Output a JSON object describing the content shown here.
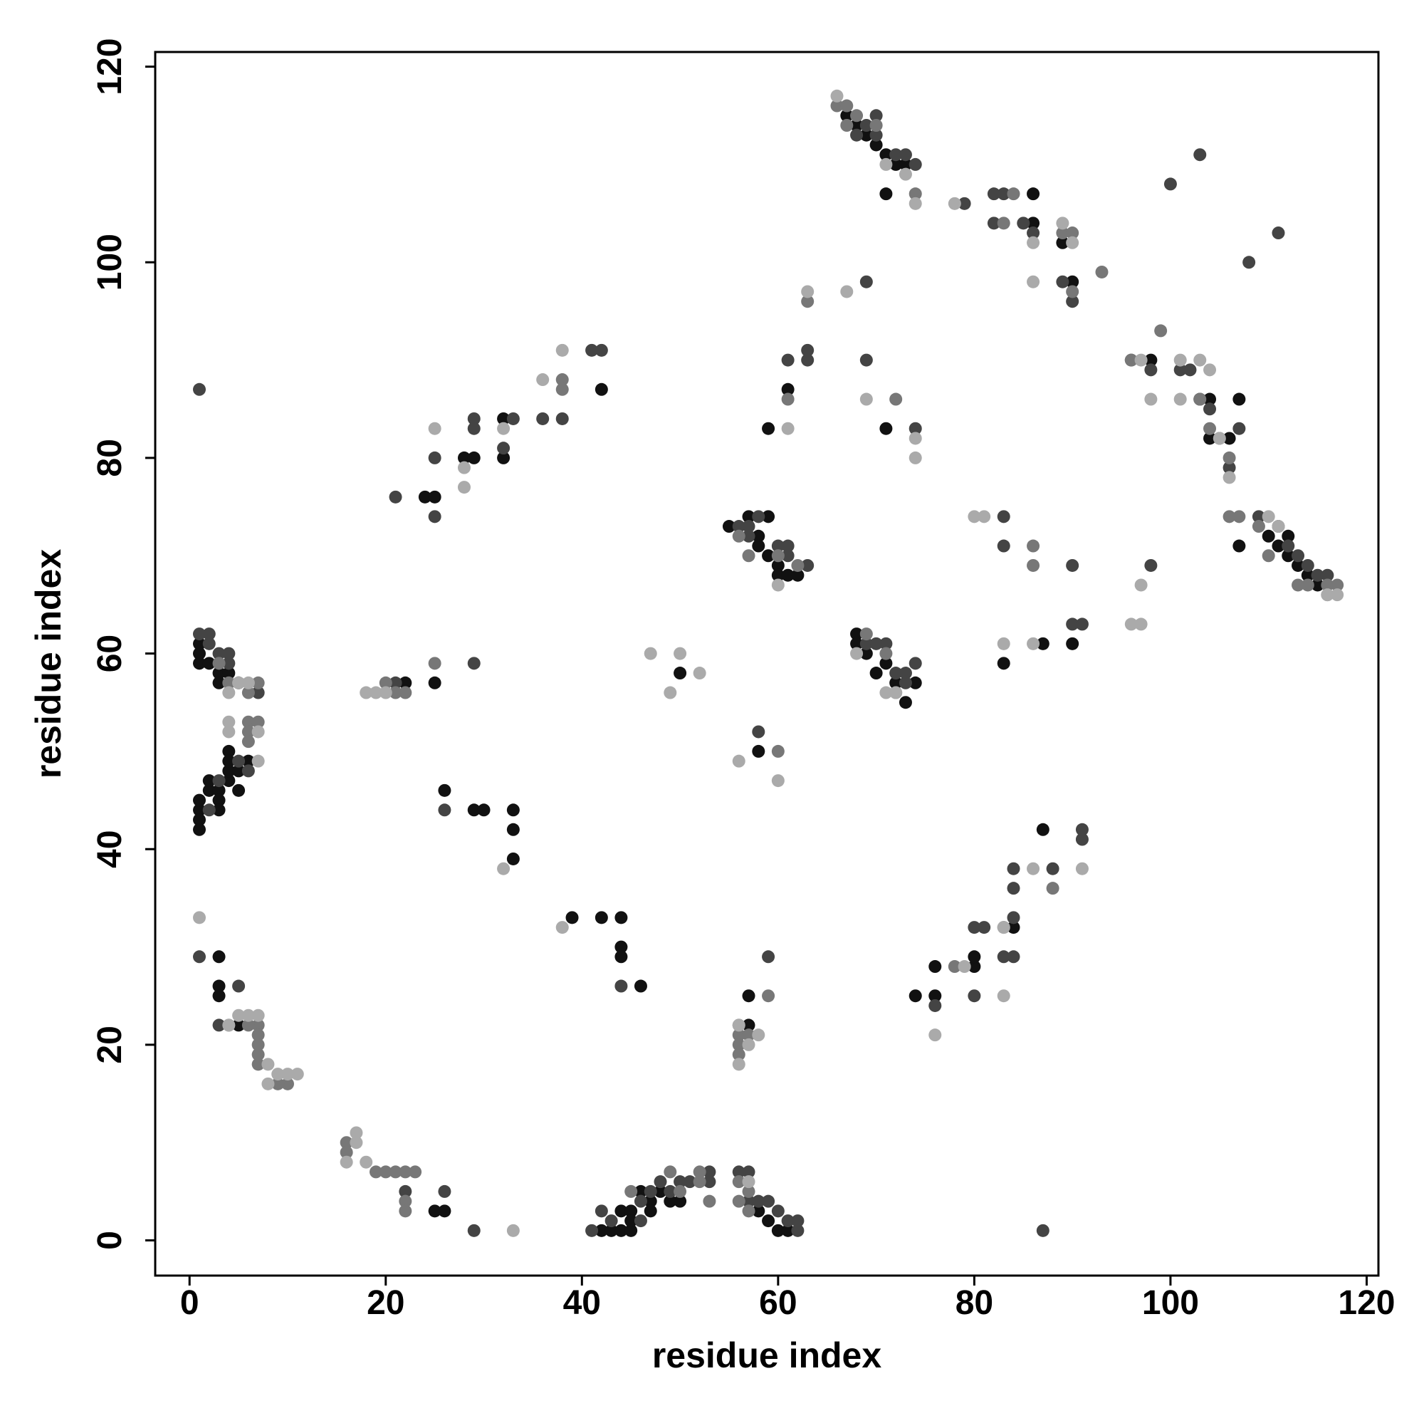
{
  "chart_data": {
    "type": "scatter",
    "xlabel": "residue index",
    "ylabel": "residue index",
    "xlim": [
      -3.5,
      121.2
    ],
    "ylim": [
      -3.6,
      121.5
    ],
    "xticks": [
      0,
      20,
      40,
      60,
      80,
      100,
      120
    ],
    "yticks": [
      0,
      20,
      40,
      60,
      80,
      100,
      120
    ],
    "series": [
      {
        "color": "#111111",
        "x": [
          1,
          1,
          2,
          1,
          3,
          4,
          3,
          1,
          1,
          1,
          1,
          2,
          2,
          3,
          3,
          3,
          4,
          4,
          4,
          4,
          5,
          5,
          6,
          22,
          25,
          24,
          25,
          28,
          29,
          32,
          32,
          42,
          26,
          29,
          30,
          33,
          33,
          33,
          39,
          42,
          44,
          44,
          44,
          46,
          3,
          3,
          3,
          5,
          25,
          26,
          42,
          43,
          44,
          45,
          44,
          45,
          45,
          46,
          47,
          47,
          48,
          49,
          50,
          50,
          57,
          55,
          58,
          58,
          59,
          60,
          60,
          61,
          62,
          59,
          57,
          57,
          58,
          58,
          59,
          60,
          61,
          61,
          59,
          68,
          68,
          69,
          70,
          71,
          72,
          73,
          74,
          71,
          71,
          67,
          68,
          69,
          70,
          71,
          72,
          73,
          86,
          86,
          89,
          90,
          87,
          83,
          90,
          87,
          84,
          80,
          80,
          76,
          76,
          74,
          98,
          103,
          104,
          104,
          107,
          107,
          106,
          110,
          111,
          112,
          113,
          114,
          115,
          112
        ],
        "y": [
          60,
          59,
          59,
          61,
          58,
          58,
          57,
          44,
          43,
          42,
          45,
          46,
          47,
          46,
          45,
          44,
          47,
          48,
          50,
          49,
          46,
          48,
          49,
          57,
          57,
          76,
          76,
          80,
          80,
          84,
          80,
          87,
          46,
          44,
          44,
          44,
          42,
          39,
          33,
          33,
          33,
          30,
          29,
          26,
          26,
          25,
          29,
          22,
          3,
          3,
          1,
          1,
          1,
          1,
          3,
          3,
          2,
          5,
          4,
          3,
          5,
          4,
          4,
          58,
          74,
          73,
          72,
          71,
          70,
          69,
          68,
          68,
          68,
          74,
          25,
          22,
          50,
          3,
          2,
          1,
          1,
          87,
          83,
          62,
          61,
          60,
          58,
          59,
          57,
          55,
          57,
          83,
          107,
          115,
          114,
          113,
          112,
          111,
          110,
          110,
          107,
          104,
          102,
          98,
          61,
          59,
          61,
          42,
          32,
          28,
          29,
          28,
          25,
          25,
          90,
          86,
          86,
          82,
          86,
          71,
          82,
          72,
          71,
          70,
          69,
          68,
          67,
          72
        ]
      },
      {
        "color": "#444444",
        "x": [
          2,
          1,
          2,
          3,
          4,
          4,
          5,
          7,
          2,
          3,
          5,
          6,
          25,
          25,
          29,
          29,
          32,
          33,
          36,
          38,
          41,
          42,
          21,
          21,
          26,
          26,
          22,
          29,
          44,
          3,
          41,
          43,
          46,
          47,
          48,
          49,
          46,
          50,
          51,
          53,
          53,
          56,
          57,
          57,
          58,
          59,
          60,
          61,
          62,
          62,
          56,
          57,
          57,
          58,
          60,
          61,
          61,
          63,
          61,
          63,
          63,
          69,
          69,
          74,
          69,
          70,
          71,
          72,
          73,
          73,
          74,
          68,
          69,
          70,
          70,
          72,
          73,
          74,
          79,
          82,
          83,
          82,
          85,
          86,
          89,
          90,
          83,
          83,
          90,
          90,
          91,
          80,
          81,
          83,
          84,
          84,
          84,
          84,
          80,
          76,
          88,
          91,
          91,
          96,
          98,
          101,
          102,
          104,
          105,
          106,
          107,
          98,
          100,
          103,
          108,
          111,
          109,
          111,
          112,
          113,
          114,
          115,
          116,
          1,
          1,
          5,
          59,
          58,
          87,
          29,
          42
        ],
        "y": [
          62,
          62,
          61,
          60,
          59,
          60,
          57,
          56,
          44,
          47,
          49,
          48,
          80,
          74,
          83,
          84,
          81,
          84,
          84,
          84,
          91,
          91,
          76,
          57,
          44,
          5,
          5,
          59,
          26,
          22,
          1,
          2,
          4,
          5,
          6,
          5,
          2,
          6,
          6,
          7,
          6,
          7,
          7,
          4,
          4,
          4,
          3,
          2,
          2,
          1,
          73,
          72,
          73,
          74,
          71,
          71,
          70,
          69,
          90,
          91,
          90,
          90,
          98,
          83,
          61,
          61,
          61,
          58,
          57,
          58,
          59,
          113,
          114,
          115,
          113,
          111,
          111,
          110,
          106,
          107,
          107,
          104,
          104,
          103,
          98,
          96,
          74,
          71,
          69,
          63,
          63,
          32,
          32,
          29,
          29,
          38,
          36,
          33,
          25,
          24,
          38,
          42,
          41,
          90,
          89,
          89,
          89,
          85,
          82,
          79,
          83,
          69,
          108,
          111,
          100,
          103,
          74,
          73,
          71,
          70,
          69,
          68,
          68,
          87,
          29,
          26,
          29,
          52,
          1,
          1,
          3
        ]
      },
      {
        "color": "#777777",
        "x": [
          3,
          4,
          6,
          7,
          6,
          6,
          6,
          7,
          5,
          20,
          21,
          22,
          25,
          38,
          38,
          22,
          22,
          22,
          21,
          20,
          19,
          16,
          16,
          23,
          45,
          49,
          50,
          52,
          53,
          52,
          56,
          57,
          56,
          57,
          56,
          56,
          57,
          56,
          56,
          7,
          7,
          7,
          7,
          7,
          6,
          4,
          10,
          9,
          59,
          60,
          56,
          62,
          61,
          63,
          67,
          66,
          67,
          68,
          70,
          74,
          84,
          83,
          89,
          90,
          93,
          96,
          106,
          107,
          104,
          103,
          106,
          110,
          113,
          114,
          116,
          117,
          116,
          88,
          83,
          78,
          86,
          86,
          90,
          72,
          57,
          60,
          72,
          69,
          71,
          99,
          109
        ],
        "y": [
          59,
          57,
          56,
          57,
          53,
          52,
          51,
          53,
          57,
          57,
          56,
          56,
          59,
          88,
          87,
          7,
          4,
          3,
          7,
          7,
          7,
          10,
          9,
          7,
          5,
          7,
          5,
          6,
          4,
          7,
          6,
          5,
          4,
          3,
          22,
          21,
          21,
          20,
          19,
          22,
          21,
          20,
          19,
          18,
          22,
          22,
          16,
          16,
          25,
          50,
          72,
          69,
          86,
          96,
          114,
          116,
          116,
          115,
          114,
          107,
          107,
          104,
          103,
          103,
          99,
          90,
          74,
          74,
          83,
          86,
          80,
          70,
          67,
          67,
          67,
          67,
          66,
          36,
          32,
          28,
          71,
          69,
          97,
          86,
          70,
          70,
          56,
          62,
          60,
          93,
          73
        ]
      },
      {
        "color": "#aaaaaa",
        "x": [
          1,
          8,
          8,
          9,
          10,
          11,
          6,
          5,
          4,
          17,
          17,
          16,
          18,
          18,
          19,
          20,
          33,
          32,
          38,
          25,
          28,
          28,
          32,
          36,
          38,
          47,
          49,
          50,
          52,
          56,
          57,
          56,
          57,
          60,
          60,
          61,
          63,
          66,
          67,
          68,
          69,
          71,
          73,
          74,
          74,
          74,
          72,
          71,
          78,
          81,
          80,
          83,
          86,
          86,
          86,
          83,
          86,
          89,
          90,
          91,
          97,
          96,
          97,
          97,
          98,
          101,
          101,
          103,
          104,
          105,
          106,
          110,
          111,
          116,
          117,
          83,
          79,
          76,
          5,
          6,
          4,
          4,
          7,
          7,
          4,
          7,
          56,
          58
        ],
        "y": [
          33,
          18,
          16,
          17,
          17,
          17,
          23,
          23,
          22,
          11,
          10,
          8,
          8,
          56,
          56,
          56,
          1,
          38,
          32,
          83,
          79,
          77,
          83,
          88,
          91,
          60,
          56,
          60,
          58,
          49,
          20,
          18,
          6,
          47,
          67,
          83,
          97,
          117,
          97,
          60,
          86,
          110,
          109,
          106,
          82,
          80,
          56,
          56,
          106,
          74,
          74,
          61,
          98,
          102,
          61,
          25,
          38,
          104,
          102,
          38,
          67,
          63,
          63,
          90,
          86,
          86,
          90,
          90,
          89,
          82,
          78,
          74,
          73,
          66,
          66,
          32,
          28,
          21,
          57,
          57,
          52,
          53,
          52,
          49,
          56,
          23,
          22,
          21
        ]
      }
    ]
  }
}
